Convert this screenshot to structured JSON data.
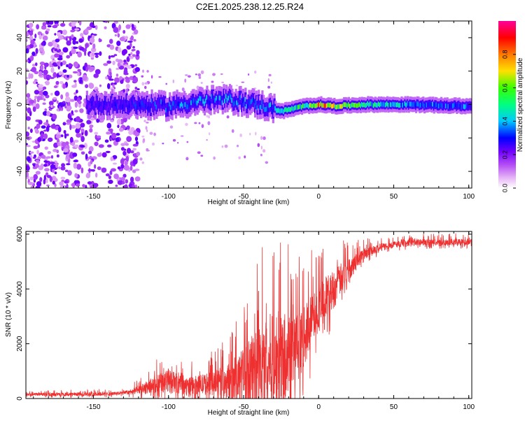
{
  "title": "C2E1.2025.238.12.25.R24",
  "chart_data": [
    {
      "type": "heatmap",
      "xlabel": "Height of straight line (km)",
      "ylabel": "Frequency (Hz)",
      "xlim": [
        -195,
        102
      ],
      "ylim": [
        -50,
        50
      ],
      "xticks": [
        -150,
        -100,
        -50,
        0,
        50,
        100
      ],
      "yticks": [
        -40,
        -20,
        0,
        20,
        40
      ],
      "colorbar": {
        "label": "Normalized spectral amplitude",
        "range": [
          0,
          1
        ],
        "ticks": [
          0.0,
          0.2,
          0.4,
          0.6,
          0.8
        ],
        "tick_labels": [
          "0.0",
          "0.2",
          "0.4",
          "0.6",
          "0.8"
        ],
        "colors": [
          "#ffffff",
          "#e7b6f7",
          "#b44cf5",
          "#7000ff",
          "#0000ff",
          "#00c8ff",
          "#00ff80",
          "#39ff00",
          "#ffe000",
          "#ff7a00",
          "#ff0000",
          "#ff0099"
        ]
      },
      "ridge": [
        {
          "x": -150,
          "f": 0,
          "amp": 0.25
        },
        {
          "x": -120,
          "f": 0,
          "amp": 0.3
        },
        {
          "x": -100,
          "f": -1,
          "amp": 0.35
        },
        {
          "x": -80,
          "f": 2,
          "amp": 0.4
        },
        {
          "x": -60,
          "f": 3,
          "amp": 0.4
        },
        {
          "x": -40,
          "f": 0,
          "amp": 0.35
        },
        {
          "x": -25,
          "f": -4,
          "amp": 0.45
        },
        {
          "x": -10,
          "f": -1,
          "amp": 0.55
        },
        {
          "x": 0,
          "f": 0,
          "amp": 0.8
        },
        {
          "x": 10,
          "f": -1,
          "amp": 0.7
        },
        {
          "x": 30,
          "f": 0,
          "amp": 0.5
        },
        {
          "x": 60,
          "f": 0,
          "amp": 0.4
        },
        {
          "x": 100,
          "f": -1,
          "amp": 0.35
        }
      ],
      "noise_region_x": [
        -195,
        -120
      ]
    },
    {
      "type": "line",
      "xlabel": "Height of straight line (km)",
      "ylabel": "SNR (10 * v/v)",
      "xlim": [
        -195,
        102
      ],
      "ylim": [
        0,
        6100
      ],
      "xticks": [
        -150,
        -100,
        -50,
        0,
        50,
        100
      ],
      "yticks": [
        0,
        2000,
        4000,
        6000
      ],
      "color": "#ee3030",
      "series": [
        {
          "name": "SNR",
          "x": [
            -195,
            -170,
            -150,
            -140,
            -130,
            -120,
            -110,
            -100,
            -90,
            -80,
            -70,
            -60,
            -50,
            -45,
            -40,
            -35,
            -30,
            -25,
            -20,
            -15,
            -10,
            -5,
            0,
            5,
            10,
            15,
            20,
            25,
            30,
            40,
            50,
            60,
            70,
            80,
            90,
            100
          ],
          "mean": [
            150,
            150,
            170,
            170,
            200,
            300,
            500,
            650,
            450,
            500,
            550,
            650,
            850,
            1000,
            1100,
            1300,
            1400,
            1500,
            1600,
            1800,
            2200,
            2800,
            3300,
            3700,
            4000,
            4400,
            4700,
            5000,
            5300,
            5500,
            5620,
            5680,
            5700,
            5700,
            5710,
            5720
          ],
          "spread": [
            50,
            60,
            80,
            60,
            60,
            150,
            300,
            450,
            300,
            350,
            450,
            650,
            1000,
            1300,
            1600,
            1700,
            1800,
            1800,
            1500,
            1300,
            1100,
            1000,
            900,
            800,
            700,
            550,
            400,
            300,
            200,
            150,
            120,
            120,
            120,
            120,
            120,
            120
          ]
        }
      ]
    }
  ]
}
